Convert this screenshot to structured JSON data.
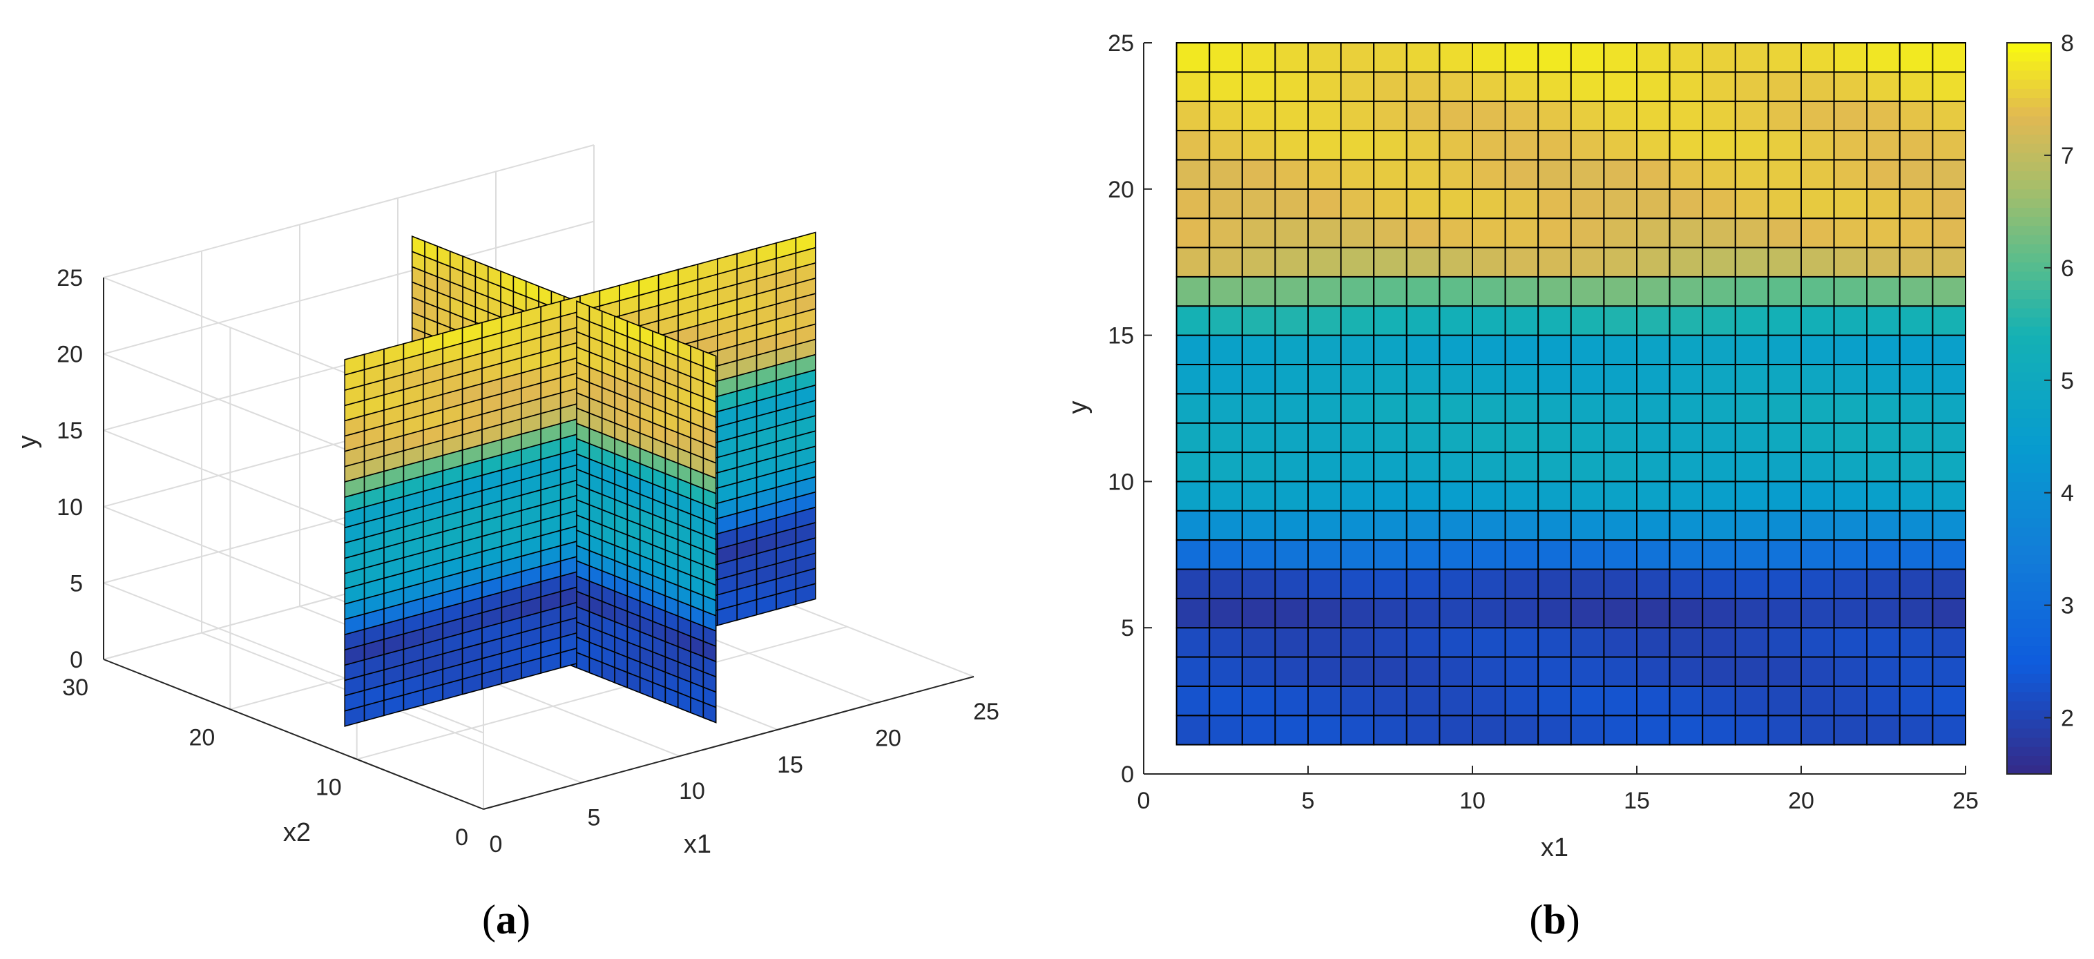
{
  "panels": {
    "a": {
      "label_open": "(",
      "label_letter": "a",
      "label_close": ")"
    },
    "b": {
      "label_open": "(",
      "label_letter": "b",
      "label_close": ")"
    }
  },
  "chart_data": [
    {
      "type": "surface3d",
      "panel": "a",
      "title": "",
      "xlabel": "x1",
      "ylabel": "x2",
      "zlabel": "y",
      "xlim": [
        0,
        25
      ],
      "ylim": [
        0,
        30
      ],
      "zlim": [
        0,
        25
      ],
      "x_ticks": [
        0,
        5,
        10,
        15,
        20,
        25
      ],
      "y_ticks": [
        0,
        10,
        20,
        30
      ],
      "z_ticks": [
        0,
        5,
        10,
        15,
        20,
        25
      ],
      "grid": true,
      "slices": [
        {
          "plane": "x1",
          "at": 12.5,
          "x2_range": [
            1,
            25
          ],
          "y_range": [
            1,
            25
          ]
        },
        {
          "plane": "x2",
          "at": 12.5,
          "x1_range": [
            1,
            25
          ],
          "y_range": [
            1,
            25
          ]
        }
      ],
      "colormap": "parula",
      "clim": [
        1.5,
        8
      ]
    },
    {
      "type": "heatmap",
      "panel": "b",
      "title": "",
      "xlabel": "x1",
      "ylabel": "y",
      "xlim": [
        0,
        25
      ],
      "ylim": [
        0,
        25
      ],
      "x_ticks": [
        0,
        5,
        10,
        15,
        20,
        25
      ],
      "y_ticks": [
        0,
        5,
        10,
        15,
        20,
        25
      ],
      "grid": false,
      "colormap": "parula",
      "colorbar": {
        "ticks": [
          2,
          3,
          4,
          5,
          6,
          7,
          8
        ],
        "range": [
          1.5,
          8
        ],
        "placement": "right"
      },
      "x_cells": [
        1,
        25
      ],
      "y_cells": [
        1,
        25
      ],
      "row_values_bottom_to_top": [
        2.2,
        2.2,
        2.1,
        2.1,
        1.9,
        2.1,
        3.1,
        4.0,
        4.6,
        4.9,
        5.0,
        5.0,
        4.8,
        4.7,
        5.4,
        6.2,
        7.1,
        7.3,
        7.4,
        7.4,
        7.5,
        7.5,
        7.6,
        7.7
      ]
    }
  ]
}
